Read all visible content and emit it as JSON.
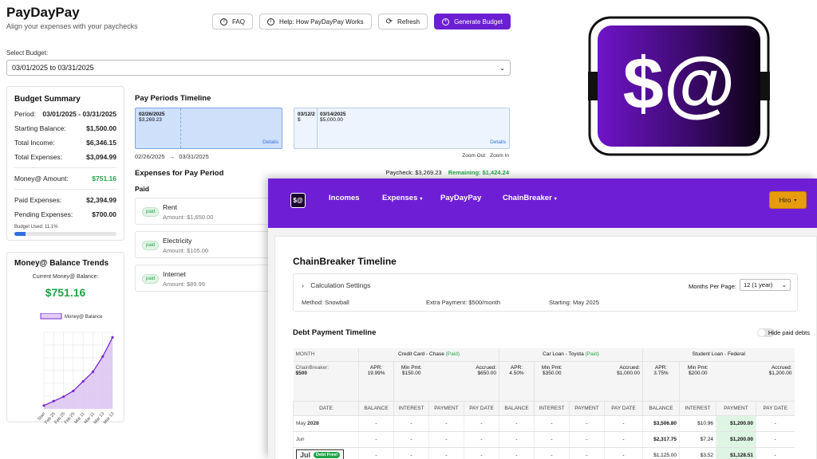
{
  "paydaypay": {
    "brand": "PayDayPay",
    "tagline": "Align your expenses with your paychecks",
    "toolbar": {
      "faq": "FAQ",
      "help": "Help: How PayDayPay Works",
      "refresh": "Refresh",
      "generate": "Generate Budget"
    },
    "select_label": "Select Budget:",
    "select_value": "03/01/2025 to 03/31/2025",
    "summary": {
      "title": "Budget Summary",
      "period_label": "Period:",
      "period_value": "03/01/2025 - 03/31/2025",
      "starting_label": "Starting Balance:",
      "starting_value": "$1,500.00",
      "income_label": "Total Income:",
      "income_value": "$6,346.15",
      "expenses_label": "Total Expenses:",
      "expenses_value": "$3,094.99",
      "money_label": "Money@ Amount:",
      "money_value": "$751.16",
      "paid_label": "Paid Expenses:",
      "paid_value": "$2,394.99",
      "pending_label": "Pending Expenses:",
      "pending_value": "$700.00",
      "used_label": "Budget Used: 11.1%",
      "used_fraction": 0.111
    },
    "trends": {
      "title": "Money@ Balance Trends",
      "current_label": "Current Money@ Balance:",
      "current_value": "$751.16"
    },
    "timeline": {
      "title": "Pay Periods Timeline",
      "periods": [
        {
          "date": "02/26/2025",
          "amount": "$3,269.23",
          "details": "Details"
        },
        {
          "date": "03/12/2",
          "amount": "$",
          "details": ""
        },
        {
          "date": "03/14/2025",
          "amount": "$5,000.00",
          "details": "Details"
        }
      ],
      "range_start": "02/26/2025",
      "range_arrow": "→",
      "range_end": "03/31/2025",
      "zoom_out": "Zoom Out",
      "zoom_in": "Zoom In"
    },
    "expenses": {
      "title": "Expenses for Pay Period",
      "paycheck_label": "Paycheck:",
      "paycheck_value": "$3,269.23",
      "remaining_label": "Remaining:",
      "remaining_value": "$1,424.24",
      "paid_section": "Paid",
      "items": [
        {
          "badge": "paid",
          "name": "Rent",
          "amount": "Amount: $1,650.00"
        },
        {
          "badge": "paid",
          "name": "Electricity",
          "amount": "Amount: $105.00"
        },
        {
          "badge": "paid",
          "name": "Internet",
          "amount": "Amount: $89.99"
        }
      ]
    }
  },
  "chart_data": {
    "type": "area",
    "title": "",
    "legend": "Money@ Balance",
    "legend_position": "top",
    "categories": [
      "Start",
      "Feb 25",
      "Feb 25",
      "Feb 25",
      "Mar 11",
      "Mar 11",
      "Mar 13",
      "Mar 13"
    ],
    "series": [
      {
        "name": "Money@ Balance",
        "values": [
          5,
          12,
          19,
          28,
          43,
          58,
          82,
          112
        ]
      }
    ],
    "ylim": [
      0,
      120
    ],
    "grid": true,
    "color": "#7a2bd0"
  },
  "logo": {
    "text": "$@"
  },
  "chainbreaker": {
    "nav": {
      "logo": "$@",
      "incomes": "Incomes",
      "expenses": "Expenses",
      "paydaypay": "PayDayPay",
      "chainbreaker": "ChainBreaker",
      "caret": "▾",
      "user": "Hiro"
    },
    "title": "ChainBreaker Timeline",
    "settings": {
      "title": "Calculation Settings",
      "months_label": "Months Per Page:",
      "months_value": "12 (1 year)",
      "method_label": "Method:",
      "method_value": "Snowball",
      "extra_label": "Extra Payment:",
      "extra_value": "$500/month",
      "starting_label": "Starting:",
      "starting_value": "May 2025"
    },
    "debt_title": "Debt Payment Timeline",
    "hide_label": "Hide paid debts",
    "table": {
      "month_label": "MONTH",
      "chainbreaker_label": "ChainBreaker:",
      "chainbreaker_value": "$500",
      "date_label": "DATE",
      "groups": [
        {
          "name": "Credit Card - Chase",
          "status": "(Paid)",
          "apr": "APR:",
          "apr_v": "19.99%",
          "min": "Min Pmt:",
          "min_v": "$150.00",
          "acc": "Accrued:",
          "acc_v": "$650.00"
        },
        {
          "name": "Car Loan - Toyota",
          "status": "(Paid)",
          "apr": "APR:",
          "apr_v": "4.50%",
          "min": "Min Pmt:",
          "min_v": "$350.00",
          "acc": "Accrued:",
          "acc_v": "$1,000.00"
        },
        {
          "name": "Student Loan - Federal",
          "status": "",
          "apr": "APR:",
          "apr_v": "3.75%",
          "min": "Min Pmt:",
          "min_v": "$200.00",
          "acc": "Accrued:",
          "acc_v": "$1,200.00"
        }
      ],
      "cols": [
        "BALANCE",
        "INTEREST",
        "PAYMENT",
        "PAY DATE"
      ],
      "rows": [
        {
          "date": "May",
          "year": "2028",
          "cells": [
            "-",
            "-",
            "-",
            "-",
            "-",
            "-",
            "-",
            "-",
            "$3,506.80",
            "$10.96",
            "$1,200.00",
            "-"
          ]
        },
        {
          "date": "Jun",
          "year": "",
          "cells": [
            "-",
            "-",
            "-",
            "-",
            "-",
            "-",
            "-",
            "-",
            "$2,317.75",
            "$7.24",
            "$1,200.00",
            "-"
          ]
        },
        {
          "date": "Jul",
          "year": "",
          "badge": "Debt Free!",
          "cells": [
            "-",
            "-",
            "-",
            "-",
            "-",
            "-",
            "-",
            "-",
            "$1,125.00",
            "$3.52",
            "$1,128.51",
            "-"
          ]
        }
      ]
    }
  }
}
